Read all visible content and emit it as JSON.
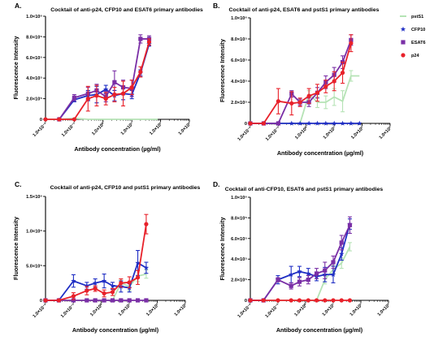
{
  "chart_data": [
    {
      "type": "line",
      "panel_label": "A.",
      "title": "Cocktail of anti-p24, CFP10 and ESAT6 primary antibodies",
      "ylabel": "Fluorescence Intensity",
      "xlabel": "Antibody concentration (µg/ml)",
      "x_log_exponents": [
        -2,
        -1,
        0,
        1,
        2,
        3
      ],
      "xlim_log": [
        -2,
        3
      ],
      "ylim": [
        0,
        1000000
      ],
      "yticks": [
        0,
        200000,
        400000,
        600000,
        800000,
        1000000
      ],
      "ytick_labels": [
        "0",
        "2.0×10⁵",
        "4.0×10⁵",
        "6.0×10⁵",
        "8.0×10⁵",
        "1.0×10⁶"
      ],
      "xtick_labels": [
        "1.0×10⁻²",
        "1.0×10⁻¹",
        "1.0×10⁰",
        "1.0×10¹",
        "1.0×10²",
        "1.0×10³"
      ],
      "series": [
        {
          "key": "pstS1",
          "color": "#b5e3b5",
          "marker": "none",
          "x": [
            0.01,
            0.03,
            0.1,
            0.3,
            0.6,
            1.25,
            2.5,
            5,
            10,
            20,
            40,
            80
          ],
          "y": [
            0,
            0,
            10000,
            0,
            0,
            0,
            0,
            0,
            0,
            0,
            0,
            0
          ],
          "err": [
            0,
            0,
            0,
            0,
            0,
            0,
            0,
            0,
            0,
            0,
            0,
            0
          ]
        },
        {
          "key": "CFP10",
          "color": "#1f2ec4",
          "marker": "star",
          "x": [
            0.03,
            0.1,
            0.3,
            0.6,
            1.25,
            2.5,
            5,
            10,
            20,
            40
          ],
          "y": [
            0,
            190000,
            230000,
            240000,
            290000,
            230000,
            250000,
            240000,
            450000,
            730000
          ],
          "err": [
            0,
            20000,
            50000,
            80000,
            40000,
            50000,
            60000,
            40000,
            30000,
            20000
          ]
        },
        {
          "key": "ESAT6",
          "color": "#7a2fa6",
          "marker": "square",
          "x": [
            0.03,
            0.1,
            0.3,
            0.6,
            1.25,
            2.5,
            5,
            10,
            20,
            40
          ],
          "y": [
            0,
            210000,
            250000,
            280000,
            220000,
            360000,
            310000,
            300000,
            780000,
            780000
          ],
          "err": [
            0,
            30000,
            60000,
            60000,
            50000,
            110000,
            70000,
            80000,
            40000,
            30000
          ]
        },
        {
          "key": "p24",
          "color": "#e8212a",
          "marker": "circle",
          "x": [
            0.01,
            0.03,
            0.1,
            0.3,
            0.6,
            1.25,
            2.5,
            5,
            10,
            20,
            40
          ],
          "y": [
            0,
            0,
            0,
            200000,
            230000,
            200000,
            240000,
            250000,
            310000,
            460000,
            750000
          ],
          "err": [
            0,
            0,
            0,
            120000,
            100000,
            60000,
            70000,
            120000,
            70000,
            50000,
            30000
          ]
        }
      ]
    },
    {
      "type": "line",
      "panel_label": "B.",
      "title": "Cocktail of anti-p24, ESAT6 and pstS1 primary antibodies",
      "ylabel": "Fluorescence Intensity",
      "xlabel": "Antibody concentration (µg/ml)",
      "xlim_log": [
        -2,
        3
      ],
      "ylim": [
        0,
        1000000
      ],
      "yticks": [
        0,
        200000,
        400000,
        600000,
        800000,
        1000000
      ],
      "ytick_labels": [
        "0",
        "2.0×10⁵",
        "4.0×10⁵",
        "6.0×10⁵",
        "8.0×10⁵",
        "1.0×10⁶"
      ],
      "xtick_labels": [
        "1.0×10⁻²",
        "1.0×10⁻¹",
        "1.0×10⁰",
        "1.0×10¹",
        "1.0×10²",
        "1.0×10³"
      ],
      "series": [
        {
          "key": "pstS1",
          "color": "#b5e3b5",
          "marker": "none",
          "x": [
            0.01,
            0.03,
            0.1,
            0.3,
            0.6,
            1.25,
            2.5,
            5,
            10,
            20,
            40,
            80
          ],
          "y": [
            0,
            0,
            0,
            0,
            0,
            280000,
            200000,
            200000,
            250000,
            210000,
            450000,
            450000
          ],
          "err": [
            0,
            0,
            0,
            0,
            0,
            30000,
            50000,
            60000,
            80000,
            100000,
            50000,
            0
          ]
        },
        {
          "key": "CFP10",
          "color": "#1f2ec4",
          "marker": "star",
          "x": [
            0.01,
            0.03,
            0.1,
            0.3,
            0.6,
            1.25,
            2.5,
            5,
            10,
            20,
            40,
            80
          ],
          "y": [
            0,
            0,
            0,
            0,
            0,
            0,
            0,
            0,
            0,
            0,
            0,
            0
          ],
          "err": [
            0,
            0,
            0,
            0,
            0,
            0,
            0,
            0,
            0,
            0,
            0,
            0
          ]
        },
        {
          "key": "ESAT6",
          "color": "#7a2fa6",
          "marker": "square",
          "x": [
            0.01,
            0.03,
            0.1,
            0.3,
            0.6,
            1.25,
            2.5,
            5,
            10,
            20,
            40
          ],
          "y": [
            0,
            0,
            0,
            280000,
            200000,
            200000,
            290000,
            390000,
            460000,
            580000,
            790000
          ],
          "err": [
            0,
            0,
            0,
            30000,
            30000,
            40000,
            50000,
            60000,
            70000,
            60000,
            50000
          ]
        },
        {
          "key": "p24",
          "color": "#e8212a",
          "marker": "circle",
          "x": [
            0.01,
            0.03,
            0.1,
            0.3,
            0.6,
            1.25,
            2.5,
            5,
            10,
            20,
            40
          ],
          "y": [
            0,
            0,
            210000,
            190000,
            200000,
            260000,
            290000,
            350000,
            400000,
            480000,
            760000
          ],
          "err": [
            0,
            0,
            120000,
            110000,
            40000,
            70000,
            80000,
            60000,
            90000,
            100000,
            80000
          ]
        }
      ]
    },
    {
      "type": "line",
      "panel_label": "C.",
      "title": "Cocktail of anti-p24, CFP10 and pstS1 primary antibodies",
      "ylabel": "Fluorescence Intensity",
      "xlabel": "Antibody concentration (µg/ml)",
      "xlim_log": [
        -2,
        3
      ],
      "ylim": [
        0,
        1500000
      ],
      "yticks": [
        0,
        500000,
        1000000,
        1500000
      ],
      "ytick_labels": [
        "0",
        "5.0×10⁵",
        "1.0×10⁶",
        "1.5×10⁶"
      ],
      "xtick_labels": [
        "1.0×10⁻²",
        "1.0×10⁻¹",
        "1.0×10⁰",
        "1.0×10¹",
        "1.0×10²",
        "1.0×10³"
      ],
      "series": [
        {
          "key": "pstS1",
          "color": "#b5e3b5",
          "marker": "none",
          "x": [
            0.01,
            0.03,
            0.1,
            0.3,
            0.6,
            1.25,
            2.5,
            5,
            10,
            20,
            40
          ],
          "y": [
            0,
            0,
            0,
            0,
            0,
            0,
            0,
            250000,
            200000,
            350000,
            380000
          ],
          "err": [
            0,
            0,
            0,
            0,
            0,
            0,
            0,
            40000,
            60000,
            80000,
            60000
          ]
        },
        {
          "key": "CFP10",
          "color": "#1f2ec4",
          "marker": "star",
          "x": [
            0.01,
            0.03,
            0.1,
            0.3,
            0.6,
            1.25,
            2.5,
            5,
            10,
            20,
            40
          ],
          "y": [
            0,
            0,
            280000,
            210000,
            250000,
            280000,
            210000,
            200000,
            180000,
            540000,
            470000
          ],
          "err": [
            0,
            0,
            90000,
            50000,
            60000,
            100000,
            50000,
            80000,
            60000,
            180000,
            80000
          ]
        },
        {
          "key": "ESAT6",
          "color": "#7a2fa6",
          "marker": "square",
          "x": [
            0.01,
            0.03,
            0.1,
            0.3,
            0.6,
            1.25,
            2.5,
            5,
            10,
            20,
            40
          ],
          "y": [
            0,
            0,
            0,
            0,
            0,
            0,
            0,
            0,
            0,
            0,
            0
          ],
          "err": [
            0,
            0,
            0,
            0,
            0,
            0,
            0,
            0,
            0,
            0,
            0
          ]
        },
        {
          "key": "p24",
          "color": "#e8212a",
          "marker": "circle",
          "x": [
            0.01,
            0.03,
            0.1,
            0.3,
            0.6,
            1.25,
            2.5,
            5,
            10,
            20,
            40
          ],
          "y": [
            0,
            0,
            60000,
            140000,
            170000,
            100000,
            120000,
            250000,
            260000,
            330000,
            1100000
          ],
          "err": [
            0,
            0,
            50000,
            60000,
            40000,
            50000,
            50000,
            60000,
            80000,
            100000,
            140000
          ]
        }
      ]
    },
    {
      "type": "line",
      "panel_label": "D.",
      "title": "Cocktail of anti-CFP10, ESAT6 and pstS1 primary antibodies",
      "ylabel": "Fluorescence Intensity",
      "xlabel": "Antibody concentration (µg/ml)",
      "xlim_log": [
        -2,
        3
      ],
      "ylim": [
        0,
        1000000
      ],
      "yticks": [
        0,
        200000,
        400000,
        600000,
        800000,
        1000000
      ],
      "ytick_labels": [
        "0",
        "2.0×10⁵",
        "4.0×10⁵",
        "6.0×10⁵",
        "8.0×10⁵",
        "1.0×10⁶"
      ],
      "xtick_labels": [
        "1.0×10⁻²",
        "1.0×10⁻¹",
        "1.0×10⁰",
        "1.0×10¹",
        "1.0×10²",
        "1.0×10³"
      ],
      "series": [
        {
          "key": "pstS1",
          "color": "#b5e3b5",
          "marker": "none",
          "x": [
            0.01,
            0.03,
            0.1,
            0.3,
            0.6,
            1.25,
            2.5,
            5,
            10,
            20,
            40
          ],
          "y": [
            0,
            0,
            0,
            0,
            0,
            0,
            0,
            200000,
            300000,
            360000,
            520000
          ],
          "err": [
            0,
            0,
            0,
            0,
            0,
            0,
            0,
            40000,
            40000,
            50000,
            40000
          ]
        },
        {
          "key": "CFP10",
          "color": "#1f2ec4",
          "marker": "star",
          "x": [
            0.01,
            0.03,
            0.1,
            0.3,
            0.6,
            1.25,
            2.5,
            5,
            10,
            20,
            40
          ],
          "y": [
            0,
            0,
            200000,
            250000,
            280000,
            260000,
            230000,
            250000,
            250000,
            450000,
            740000
          ],
          "err": [
            0,
            0,
            40000,
            80000,
            50000,
            50000,
            40000,
            70000,
            80000,
            60000,
            50000
          ]
        },
        {
          "key": "ESAT6",
          "color": "#7a2fa6",
          "marker": "square",
          "x": [
            0.01,
            0.03,
            0.1,
            0.3,
            0.6,
            1.25,
            2.5,
            5,
            10,
            20,
            40
          ],
          "y": [
            0,
            0,
            200000,
            140000,
            180000,
            200000,
            260000,
            290000,
            370000,
            560000,
            730000
          ],
          "err": [
            0,
            0,
            20000,
            30000,
            40000,
            40000,
            50000,
            80000,
            60000,
            70000,
            80000
          ]
        },
        {
          "key": "p24",
          "color": "#e8212a",
          "marker": "circle",
          "x": [
            0.01,
            0.03,
            0.1,
            0.3,
            0.6,
            1.25,
            2.5,
            5,
            10,
            20,
            40
          ],
          "y": [
            0,
            0,
            0,
            0,
            0,
            0,
            0,
            0,
            0,
            0,
            0
          ],
          "err": [
            0,
            0,
            0,
            0,
            0,
            0,
            0,
            0,
            0,
            0,
            0
          ]
        }
      ]
    }
  ],
  "legend": {
    "placement": "top-right",
    "items": [
      {
        "label": "pstS1",
        "color": "#b5e3b5",
        "marker": "none"
      },
      {
        "label": "CFP10",
        "color": "#1f2ec4",
        "marker": "star"
      },
      {
        "label": "ESAT6",
        "color": "#7a2fa6",
        "marker": "square"
      },
      {
        "label": "p24",
        "color": "#e8212a",
        "marker": "circle"
      }
    ]
  }
}
